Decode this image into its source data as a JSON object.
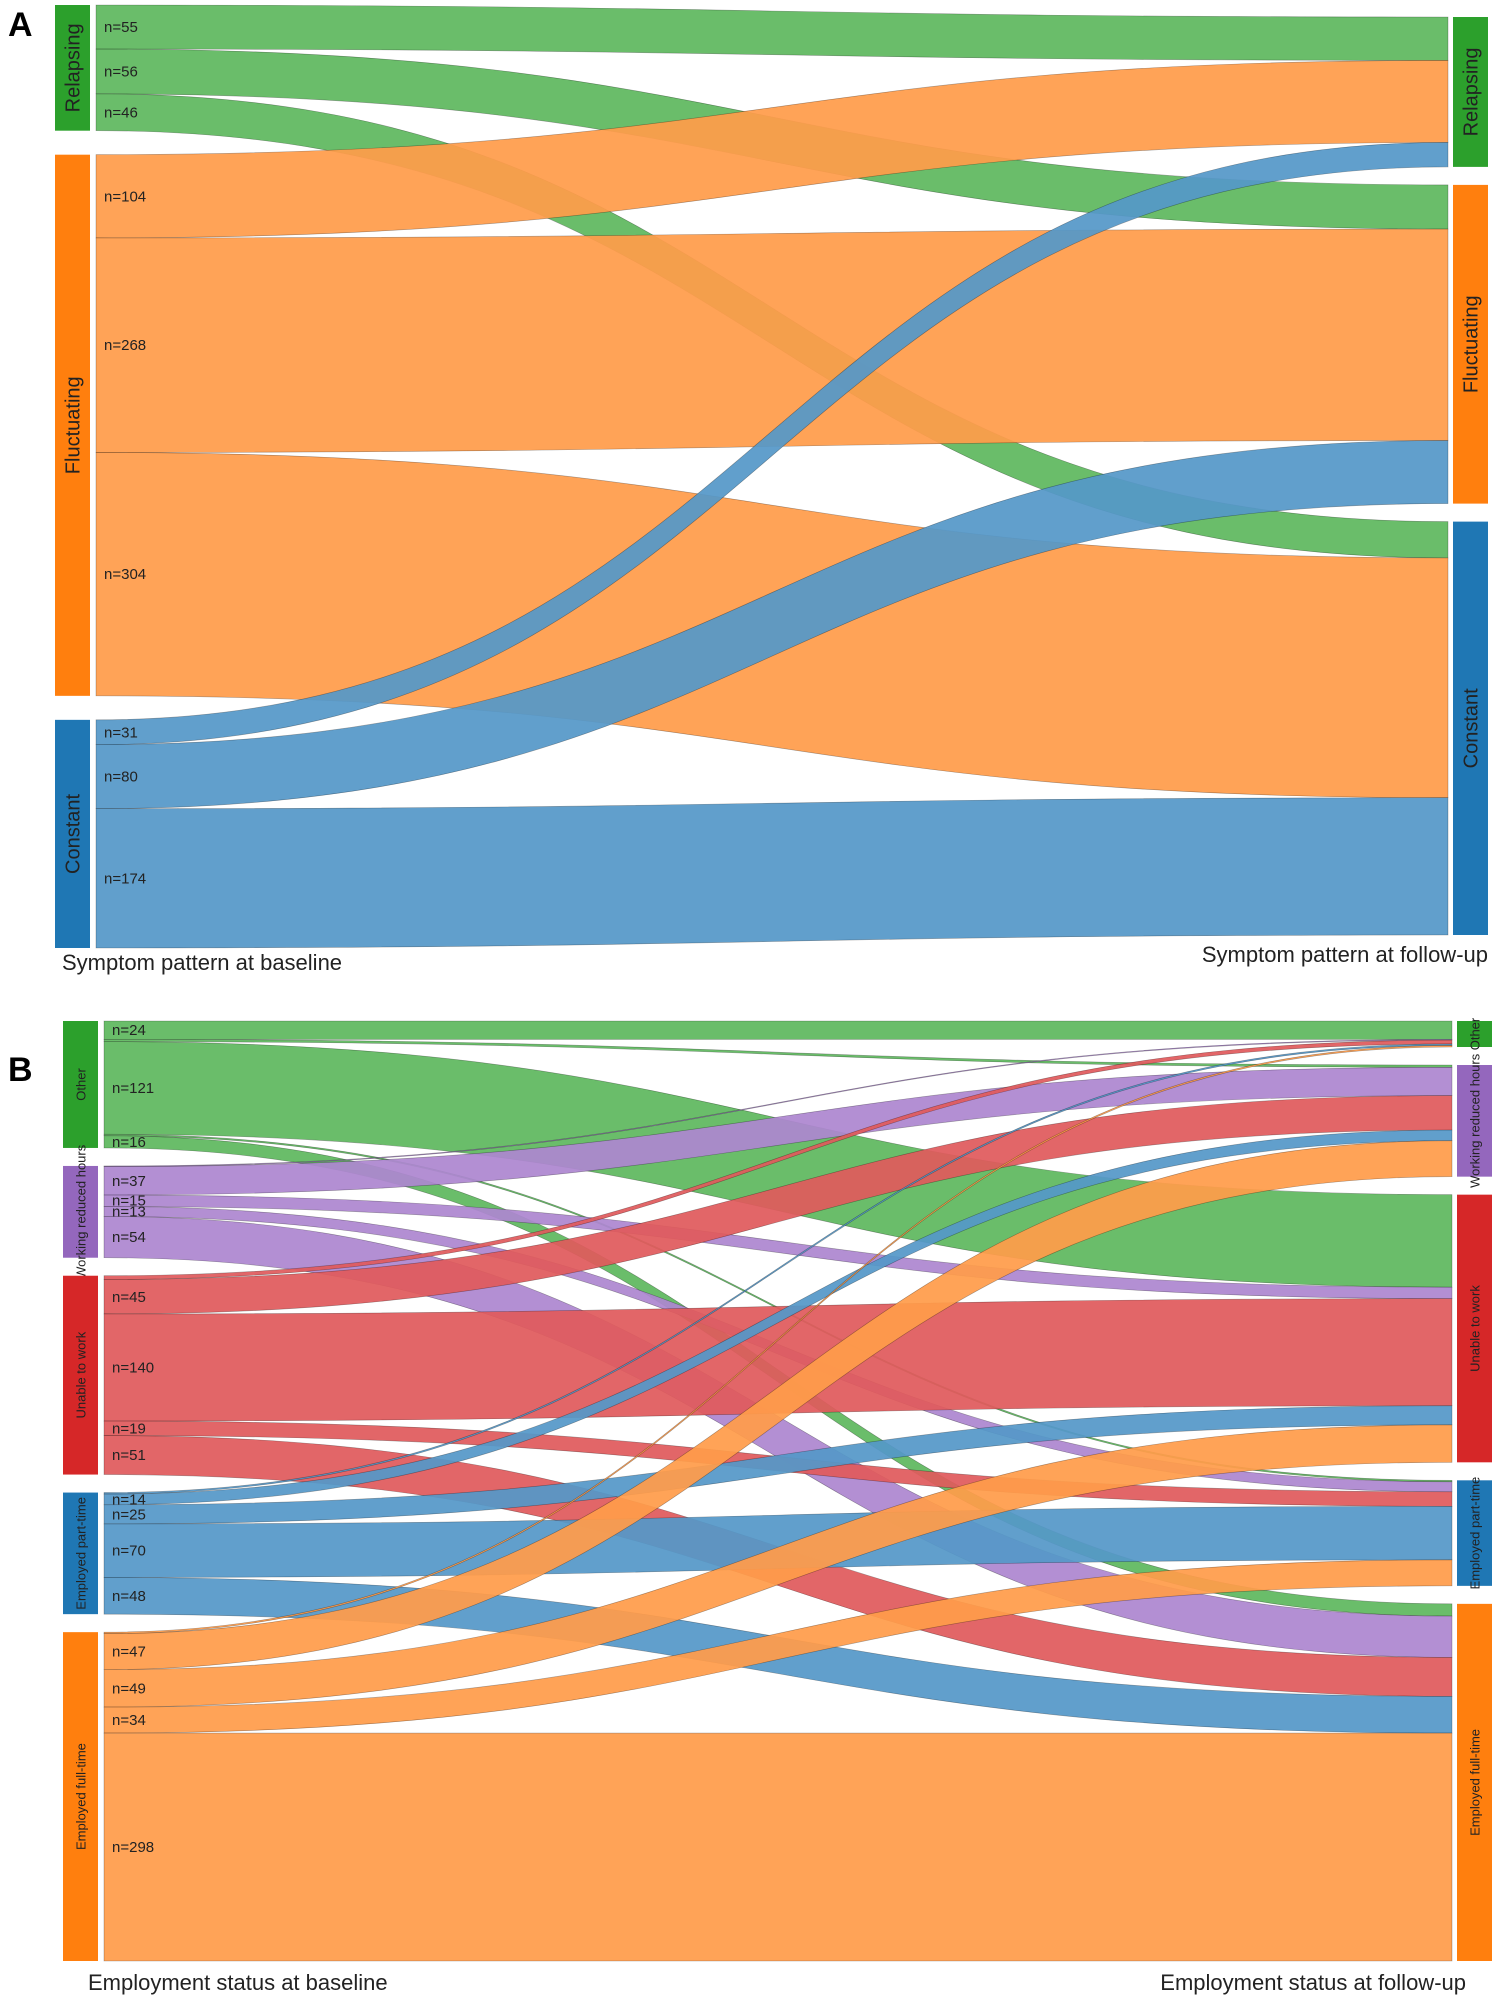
{
  "chart_data": [
    {
      "type": "sankey",
      "panel": "A",
      "xlabel_left": "Symptom pattern at baseline",
      "xlabel_right": "Symptom pattern at follow-up",
      "categories": [
        "Relapsing",
        "Fluctuating",
        "Constant"
      ],
      "colors": {
        "Relapsing": "#2ca02c",
        "Fluctuating": "#ff7f0e",
        "Constant": "#1f77b4"
      },
      "flow_colors": {
        "Relapsing": "#5fb85f",
        "Fluctuating": "#ff9c4a",
        "Constant": "#5598c8"
      },
      "flows": [
        {
          "source": "Relapsing",
          "target": "Relapsing",
          "value": 55,
          "label": "n=55"
        },
        {
          "source": "Relapsing",
          "target": "Fluctuating",
          "value": 56,
          "label": "n=56"
        },
        {
          "source": "Relapsing",
          "target": "Constant",
          "value": 46,
          "label": "n=46"
        },
        {
          "source": "Fluctuating",
          "target": "Relapsing",
          "value": 104,
          "label": "n=104"
        },
        {
          "source": "Fluctuating",
          "target": "Fluctuating",
          "value": 268,
          "label": "n=268"
        },
        {
          "source": "Fluctuating",
          "target": "Constant",
          "value": 304,
          "label": "n=304"
        },
        {
          "source": "Constant",
          "target": "Relapsing",
          "value": 31,
          "label": "n=31"
        },
        {
          "source": "Constant",
          "target": "Fluctuating",
          "value": 80,
          "label": "n=80"
        },
        {
          "source": "Constant",
          "target": "Constant",
          "value": 174,
          "label": "n=174"
        }
      ]
    },
    {
      "type": "sankey",
      "panel": "B",
      "xlabel_left": "Employment status at baseline",
      "xlabel_right": "Employment status at follow-up",
      "categories": [
        "Other",
        "Working reduced hours",
        "Unable to work",
        "Employed part-time",
        "Employed full-time"
      ],
      "colors": {
        "Other": "#2ca02c",
        "Working reduced hours": "#9467bd",
        "Unable to work": "#d62728",
        "Employed part-time": "#1f77b4",
        "Employed full-time": "#ff7f0e"
      },
      "flow_colors": {
        "Other": "#5fb85f",
        "Working reduced hours": "#ad86d0",
        "Unable to work": "#e05a5c",
        "Employed part-time": "#5598c8",
        "Employed full-time": "#ff9c4a"
      },
      "flows": [
        {
          "source": "Other",
          "target": "Other",
          "value": 24,
          "label": "n=24"
        },
        {
          "source": "Other",
          "target": "Working reduced hours",
          "value": 3,
          "label": ""
        },
        {
          "source": "Other",
          "target": "Unable to work",
          "value": 121,
          "label": "n=121"
        },
        {
          "source": "Other",
          "target": "Employed part-time",
          "value": 2,
          "label": ""
        },
        {
          "source": "Other",
          "target": "Employed full-time",
          "value": 16,
          "label": "n=16"
        },
        {
          "source": "Working reduced hours",
          "target": "Other",
          "value": 1,
          "label": ""
        },
        {
          "source": "Working reduced hours",
          "target": "Working reduced hours",
          "value": 37,
          "label": "n=37"
        },
        {
          "source": "Working reduced hours",
          "target": "Unable to work",
          "value": 15,
          "label": "n=15"
        },
        {
          "source": "Working reduced hours",
          "target": "Employed part-time",
          "value": 13,
          "label": "n=13"
        },
        {
          "source": "Working reduced hours",
          "target": "Employed full-time",
          "value": 54,
          "label": "n=54"
        },
        {
          "source": "Unable to work",
          "target": "Other",
          "value": 5,
          "label": ""
        },
        {
          "source": "Unable to work",
          "target": "Working reduced hours",
          "value": 45,
          "label": "n=45"
        },
        {
          "source": "Unable to work",
          "target": "Unable to work",
          "value": 140,
          "label": "n=140"
        },
        {
          "source": "Unable to work",
          "target": "Employed part-time",
          "value": 19,
          "label": "n=19"
        },
        {
          "source": "Unable to work",
          "target": "Employed full-time",
          "value": 51,
          "label": "n=51"
        },
        {
          "source": "Employed part-time",
          "target": "Other",
          "value": 2,
          "label": ""
        },
        {
          "source": "Employed part-time",
          "target": "Working reduced hours",
          "value": 14,
          "label": "n=14"
        },
        {
          "source": "Employed part-time",
          "target": "Unable to work",
          "value": 25,
          "label": "n=25"
        },
        {
          "source": "Employed part-time",
          "target": "Employed part-time",
          "value": 70,
          "label": "n=70"
        },
        {
          "source": "Employed part-time",
          "target": "Employed full-time",
          "value": 48,
          "label": "n=48"
        },
        {
          "source": "Employed full-time",
          "target": "Other",
          "value": 2,
          "label": ""
        },
        {
          "source": "Employed full-time",
          "target": "Working reduced hours",
          "value": 47,
          "label": "n=47"
        },
        {
          "source": "Employed full-time",
          "target": "Unable to work",
          "value": 49,
          "label": "n=49"
        },
        {
          "source": "Employed full-time",
          "target": "Employed part-time",
          "value": 34,
          "label": "n=34"
        },
        {
          "source": "Employed full-time",
          "target": "Employed full-time",
          "value": 298,
          "label": "n=298"
        }
      ]
    }
  ],
  "panels": {
    "a_letter": "A",
    "b_letter": "B"
  }
}
